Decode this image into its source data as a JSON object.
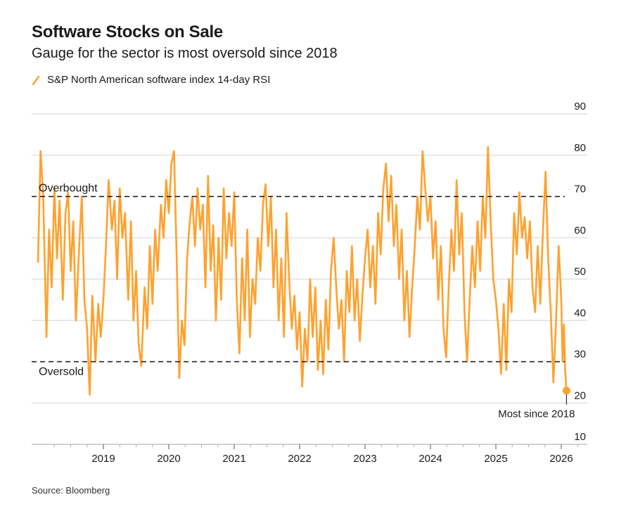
{
  "chart_data": {
    "type": "line",
    "title": "Software Stocks on Sale",
    "subtitle": "Gauge for the sector is most oversold since 2018",
    "series": [
      {
        "name": "S&P North American software index 14-day RSI",
        "color": "#ffa12e",
        "points": [
          [
            2018.0,
            54
          ],
          [
            2018.04,
            81
          ],
          [
            2018.08,
            70
          ],
          [
            2018.13,
            36
          ],
          [
            2018.17,
            62
          ],
          [
            2018.21,
            48
          ],
          [
            2018.25,
            72
          ],
          [
            2018.29,
            55
          ],
          [
            2018.33,
            69
          ],
          [
            2018.38,
            45
          ],
          [
            2018.42,
            66
          ],
          [
            2018.46,
            71
          ],
          [
            2018.5,
            52
          ],
          [
            2018.54,
            64
          ],
          [
            2018.58,
            40
          ],
          [
            2018.63,
            58
          ],
          [
            2018.67,
            70
          ],
          [
            2018.71,
            45
          ],
          [
            2018.75,
            38
          ],
          [
            2018.79,
            22
          ],
          [
            2018.83,
            46
          ],
          [
            2018.88,
            30
          ],
          [
            2018.92,
            44
          ],
          [
            2018.96,
            36
          ],
          [
            2019.0,
            45
          ],
          [
            2019.04,
            58
          ],
          [
            2019.08,
            74
          ],
          [
            2019.13,
            62
          ],
          [
            2019.17,
            69
          ],
          [
            2019.21,
            50
          ],
          [
            2019.25,
            72
          ],
          [
            2019.29,
            60
          ],
          [
            2019.33,
            66
          ],
          [
            2019.38,
            45
          ],
          [
            2019.42,
            64
          ],
          [
            2019.46,
            40
          ],
          [
            2019.5,
            52
          ],
          [
            2019.54,
            34
          ],
          [
            2019.58,
            29
          ],
          [
            2019.63,
            48
          ],
          [
            2019.67,
            38
          ],
          [
            2019.71,
            58
          ],
          [
            2019.75,
            44
          ],
          [
            2019.79,
            62
          ],
          [
            2019.83,
            52
          ],
          [
            2019.88,
            68
          ],
          [
            2019.92,
            60
          ],
          [
            2019.96,
            74
          ],
          [
            2020.0,
            66
          ],
          [
            2020.04,
            78
          ],
          [
            2020.08,
            81
          ],
          [
            2020.12,
            55
          ],
          [
            2020.16,
            26
          ],
          [
            2020.2,
            40
          ],
          [
            2020.24,
            34
          ],
          [
            2020.28,
            55
          ],
          [
            2020.32,
            64
          ],
          [
            2020.36,
            70
          ],
          [
            2020.4,
            58
          ],
          [
            2020.44,
            72
          ],
          [
            2020.48,
            62
          ],
          [
            2020.52,
            68
          ],
          [
            2020.56,
            48
          ],
          [
            2020.6,
            75
          ],
          [
            2020.64,
            52
          ],
          [
            2020.68,
            63
          ],
          [
            2020.72,
            40
          ],
          [
            2020.76,
            60
          ],
          [
            2020.8,
            45
          ],
          [
            2020.84,
            72
          ],
          [
            2020.88,
            55
          ],
          [
            2020.92,
            66
          ],
          [
            2020.96,
            58
          ],
          [
            2021.0,
            71
          ],
          [
            2021.04,
            45
          ],
          [
            2021.08,
            32
          ],
          [
            2021.12,
            55
          ],
          [
            2021.16,
            40
          ],
          [
            2021.2,
            62
          ],
          [
            2021.24,
            36
          ],
          [
            2021.28,
            50
          ],
          [
            2021.32,
            44
          ],
          [
            2021.36,
            60
          ],
          [
            2021.4,
            52
          ],
          [
            2021.44,
            68
          ],
          [
            2021.48,
            73
          ],
          [
            2021.52,
            58
          ],
          [
            2021.56,
            70
          ],
          [
            2021.6,
            48
          ],
          [
            2021.64,
            62
          ],
          [
            2021.68,
            40
          ],
          [
            2021.72,
            55
          ],
          [
            2021.76,
            36
          ],
          [
            2021.8,
            66
          ],
          [
            2021.84,
            50
          ],
          [
            2021.88,
            38
          ],
          [
            2021.92,
            46
          ],
          [
            2021.96,
            33
          ],
          [
            2022.0,
            42
          ],
          [
            2022.04,
            24
          ],
          [
            2022.08,
            38
          ],
          [
            2022.12,
            30
          ],
          [
            2022.16,
            50
          ],
          [
            2022.2,
            36
          ],
          [
            2022.24,
            48
          ],
          [
            2022.28,
            28
          ],
          [
            2022.32,
            40
          ],
          [
            2022.36,
            27
          ],
          [
            2022.4,
            45
          ],
          [
            2022.44,
            33
          ],
          [
            2022.48,
            52
          ],
          [
            2022.52,
            60
          ],
          [
            2022.56,
            48
          ],
          [
            2022.6,
            38
          ],
          [
            2022.64,
            45
          ],
          [
            2022.68,
            30
          ],
          [
            2022.72,
            52
          ],
          [
            2022.76,
            42
          ],
          [
            2022.8,
            58
          ],
          [
            2022.84,
            40
          ],
          [
            2022.88,
            50
          ],
          [
            2022.92,
            35
          ],
          [
            2022.96,
            46
          ],
          [
            2023.0,
            55
          ],
          [
            2023.04,
            62
          ],
          [
            2023.08,
            48
          ],
          [
            2023.12,
            58
          ],
          [
            2023.16,
            44
          ],
          [
            2023.2,
            66
          ],
          [
            2023.24,
            56
          ],
          [
            2023.28,
            72
          ],
          [
            2023.32,
            78
          ],
          [
            2023.36,
            64
          ],
          [
            2023.4,
            75
          ],
          [
            2023.44,
            58
          ],
          [
            2023.48,
            68
          ],
          [
            2023.52,
            50
          ],
          [
            2023.56,
            62
          ],
          [
            2023.6,
            40
          ],
          [
            2023.64,
            52
          ],
          [
            2023.68,
            36
          ],
          [
            2023.72,
            48
          ],
          [
            2023.76,
            58
          ],
          [
            2023.8,
            70
          ],
          [
            2023.84,
            62
          ],
          [
            2023.88,
            81
          ],
          [
            2023.92,
            72
          ],
          [
            2023.96,
            64
          ],
          [
            2024.0,
            70
          ],
          [
            2024.04,
            55
          ],
          [
            2024.08,
            64
          ],
          [
            2024.12,
            45
          ],
          [
            2024.16,
            58
          ],
          [
            2024.2,
            38
          ],
          [
            2024.24,
            31
          ],
          [
            2024.28,
            48
          ],
          [
            2024.32,
            62
          ],
          [
            2024.36,
            52
          ],
          [
            2024.4,
            74
          ],
          [
            2024.44,
            56
          ],
          [
            2024.48,
            66
          ],
          [
            2024.52,
            42
          ],
          [
            2024.56,
            30
          ],
          [
            2024.6,
            45
          ],
          [
            2024.64,
            58
          ],
          [
            2024.68,
            48
          ],
          [
            2024.72,
            64
          ],
          [
            2024.76,
            52
          ],
          [
            2024.8,
            70
          ],
          [
            2024.84,
            60
          ],
          [
            2024.88,
            82
          ],
          [
            2024.92,
            64
          ],
          [
            2024.96,
            50
          ],
          [
            2025.0,
            45
          ],
          [
            2025.04,
            38
          ],
          [
            2025.08,
            27
          ],
          [
            2025.12,
            44
          ],
          [
            2025.16,
            28
          ],
          [
            2025.2,
            50
          ],
          [
            2025.24,
            42
          ],
          [
            2025.28,
            66
          ],
          [
            2025.32,
            56
          ],
          [
            2025.36,
            71
          ],
          [
            2025.4,
            60
          ],
          [
            2025.44,
            65
          ],
          [
            2025.48,
            55
          ],
          [
            2025.52,
            64
          ],
          [
            2025.56,
            48
          ],
          [
            2025.6,
            42
          ],
          [
            2025.64,
            58
          ],
          [
            2025.68,
            44
          ],
          [
            2025.72,
            62
          ],
          [
            2025.76,
            76
          ],
          [
            2025.8,
            55
          ],
          [
            2025.84,
            42
          ],
          [
            2025.88,
            25
          ],
          [
            2025.92,
            40
          ],
          [
            2025.96,
            58
          ],
          [
            2026.0,
            45
          ],
          [
            2026.02,
            30
          ],
          [
            2026.04,
            39
          ],
          [
            2026.06,
            28
          ],
          [
            2026.08,
            23
          ]
        ]
      }
    ],
    "y_axis": {
      "position": "right",
      "range": [
        10,
        90
      ],
      "ticks": [
        90,
        80,
        70,
        60,
        50,
        40,
        30,
        20,
        10
      ],
      "grid": true
    },
    "x_axis": {
      "range": [
        2018.0,
        2026.4
      ],
      "ticks": [
        "2019",
        "2020",
        "2021",
        "2022",
        "2023",
        "2024",
        "2025",
        "2026"
      ]
    },
    "reference_lines": [
      {
        "value": 70,
        "label": "Overbought",
        "style": "dashed"
      },
      {
        "value": 30,
        "label": "Oversold",
        "style": "dashed"
      }
    ],
    "annotation": {
      "label": "Most since 2018",
      "x": 2026.08,
      "y": 23
    },
    "source": "Source: Bloomberg"
  }
}
